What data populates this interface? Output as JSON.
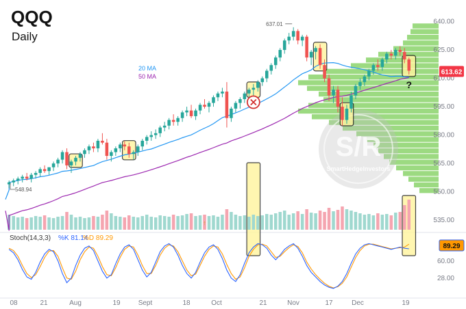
{
  "header": {
    "title": "QQQ",
    "subtitle": "Daily"
  },
  "chart_data": {
    "type": "candlestick",
    "price_axis": {
      "ticks": [
        "640.00",
        "625.00",
        "610.00",
        "595.00",
        "580.00",
        "565.00",
        "550.00",
        "535.00"
      ],
      "ylim": [
        530,
        642
      ]
    },
    "time_axis": {
      "ticks": [
        "08",
        "21",
        "Aug",
        "19",
        "Sept",
        "18",
        "Oct",
        "21",
        "Nov",
        "17",
        "Dec",
        "19"
      ]
    },
    "last_price": "613.62",
    "high_label": "637.01",
    "low_label": "548.94",
    "ma_labels": {
      "ma20": "20 MA",
      "ma50": "50 MA"
    },
    "annotation_mark": "?",
    "watermark": {
      "line1": "S/R",
      "line2": "SmartHedgeInvestors"
    },
    "candles": [
      [
        554,
        556,
        552,
        555
      ],
      [
        555,
        557,
        553,
        556
      ],
      [
        556,
        558,
        554,
        557
      ],
      [
        557,
        559,
        555,
        558
      ],
      [
        558,
        560,
        556,
        557
      ],
      [
        557,
        560,
        555,
        559
      ],
      [
        559,
        561,
        557,
        560
      ],
      [
        560,
        563,
        558,
        562
      ],
      [
        562,
        564,
        560,
        561
      ],
      [
        561,
        563,
        559,
        563
      ],
      [
        563,
        566,
        561,
        565
      ],
      [
        565,
        568,
        563,
        567
      ],
      [
        567,
        572,
        565,
        571
      ],
      [
        571,
        573,
        562,
        564
      ],
      [
        564,
        567,
        560,
        566
      ],
      [
        566,
        569,
        564,
        568
      ],
      [
        568,
        571,
        566,
        570
      ],
      [
        570,
        573,
        568,
        572
      ],
      [
        572,
        575,
        570,
        574
      ],
      [
        574,
        576,
        571,
        573
      ],
      [
        573,
        578,
        571,
        577
      ],
      [
        577,
        581,
        575,
        576
      ],
      [
        576,
        578,
        567,
        569
      ],
      [
        569,
        572,
        566,
        571
      ],
      [
        571,
        574,
        569,
        573
      ],
      [
        573,
        576,
        571,
        575
      ],
      [
        575,
        577,
        572,
        574
      ],
      [
        574,
        576,
        568,
        570
      ],
      [
        570,
        572,
        567,
        571
      ],
      [
        571,
        575,
        569,
        574
      ],
      [
        574,
        578,
        572,
        577
      ],
      [
        577,
        580,
        575,
        579
      ],
      [
        579,
        582,
        577,
        580
      ],
      [
        580,
        583,
        578,
        581
      ],
      [
        581,
        585,
        579,
        584
      ],
      [
        584,
        587,
        582,
        585
      ],
      [
        585,
        589,
        583,
        588
      ],
      [
        588,
        591,
        585,
        587
      ],
      [
        587,
        590,
        585,
        589
      ],
      [
        589,
        593,
        587,
        592
      ],
      [
        592,
        595,
        590,
        593
      ],
      [
        593,
        596,
        589,
        590
      ],
      [
        590,
        594,
        588,
        593
      ],
      [
        593,
        597,
        591,
        596
      ],
      [
        596,
        599,
        594,
        595
      ],
      [
        595,
        598,
        592,
        597
      ],
      [
        597,
        601,
        595,
        600
      ],
      [
        600,
        603,
        598,
        602
      ],
      [
        602,
        605,
        600,
        603
      ],
      [
        603,
        608,
        584,
        589
      ],
      [
        589,
        595,
        587,
        594
      ],
      [
        594,
        598,
        592,
        597
      ],
      [
        597,
        600,
        594,
        599
      ],
      [
        599,
        603,
        597,
        602
      ],
      [
        602,
        605,
        599,
        604
      ],
      [
        604,
        607,
        601,
        605
      ],
      [
        605,
        609,
        603,
        608
      ],
      [
        608,
        611,
        606,
        610
      ],
      [
        610,
        615,
        608,
        614
      ],
      [
        614,
        618,
        612,
        617
      ],
      [
        617,
        622,
        615,
        621
      ],
      [
        621,
        626,
        619,
        625
      ],
      [
        625,
        631,
        623,
        630
      ],
      [
        630,
        634,
        628,
        632
      ],
      [
        632,
        637,
        630,
        635
      ],
      [
        635,
        636,
        628,
        630
      ],
      [
        630,
        633,
        627,
        632
      ],
      [
        632,
        633,
        619,
        621
      ],
      [
        621,
        625,
        617,
        624
      ],
      [
        624,
        627,
        620,
        626
      ],
      [
        626,
        628,
        615,
        617
      ],
      [
        617,
        620,
        608,
        610
      ],
      [
        610,
        612,
        598,
        601
      ],
      [
        601,
        606,
        597,
        604
      ],
      [
        604,
        606,
        592,
        595
      ],
      [
        595,
        600,
        585,
        588
      ],
      [
        588,
        596,
        586,
        594
      ],
      [
        594,
        603,
        592,
        601
      ],
      [
        601,
        607,
        599,
        606
      ],
      [
        606,
        610,
        604,
        608
      ],
      [
        608,
        612,
        606,
        611
      ],
      [
        611,
        615,
        609,
        614
      ],
      [
        614,
        618,
        612,
        617
      ],
      [
        617,
        620,
        614,
        616
      ],
      [
        616,
        621,
        614,
        620
      ],
      [
        620,
        624,
        618,
        623
      ],
      [
        623,
        625,
        620,
        622
      ],
      [
        622,
        626,
        620,
        625
      ],
      [
        625,
        627,
        622,
        624
      ],
      [
        624,
        626,
        618,
        620
      ],
      [
        620,
        621,
        612,
        614
      ]
    ],
    "volume": [
      22,
      20,
      18,
      19,
      17,
      18,
      20,
      19,
      21,
      18,
      17,
      19,
      20,
      26,
      22,
      18,
      19,
      17,
      18,
      20,
      19,
      22,
      28,
      24,
      20,
      19,
      18,
      21,
      19,
      18,
      20,
      22,
      19,
      18,
      21,
      20,
      19,
      22,
      20,
      21,
      23,
      24,
      20,
      21,
      22,
      20,
      21,
      19,
      22,
      30,
      26,
      22,
      20,
      21,
      19,
      22,
      20,
      21,
      23,
      22,
      24,
      26,
      28,
      22,
      24,
      27,
      23,
      30,
      25,
      24,
      28,
      26,
      32,
      27,
      29,
      34,
      30,
      28,
      26,
      24,
      22,
      23,
      21,
      24,
      22,
      23,
      21,
      25,
      26,
      36,
      44
    ],
    "volume_marker": "↑",
    "stochastic": {
      "label": "Stoch(14,3,3)",
      "k_label": "%K 81.14",
      "d_label": "%D 89.29",
      "last_value": "89.29",
      "ticks": [
        "60.00",
        "28.00"
      ],
      "k": [
        80,
        74,
        62,
        45,
        32,
        28,
        40,
        58,
        72,
        80,
        76,
        60,
        38,
        22,
        30,
        52,
        70,
        82,
        86,
        78,
        60,
        42,
        30,
        36,
        55,
        72,
        84,
        88,
        80,
        62,
        44,
        32,
        40,
        58,
        76,
        86,
        90,
        84,
        70,
        52,
        38,
        30,
        40,
        58,
        74,
        84,
        88,
        80,
        64,
        44,
        30,
        24,
        36,
        56,
        74,
        84,
        90,
        88,
        82,
        70,
        62,
        70,
        80,
        86,
        90,
        82,
        68,
        52,
        40,
        32,
        24,
        18,
        14,
        12,
        16,
        24,
        38,
        56,
        72,
        82,
        88,
        90,
        88,
        86,
        84,
        82,
        80,
        82,
        84,
        82,
        81
      ],
      "d": [
        82,
        78,
        68,
        52,
        38,
        31,
        36,
        50,
        66,
        77,
        78,
        68,
        48,
        30,
        28,
        42,
        62,
        76,
        84,
        82,
        68,
        50,
        36,
        34,
        48,
        66,
        80,
        86,
        84,
        70,
        52,
        38,
        38,
        52,
        70,
        82,
        88,
        86,
        76,
        60,
        44,
        34,
        37,
        52,
        68,
        80,
        86,
        84,
        72,
        54,
        38,
        28,
        32,
        48,
        68,
        80,
        88,
        89,
        86,
        76,
        66,
        68,
        76,
        83,
        88,
        85,
        74,
        58,
        46,
        36,
        28,
        21,
        16,
        13,
        15,
        21,
        32,
        49,
        66,
        78,
        86,
        89,
        89,
        87,
        85,
        83,
        81,
        82,
        83,
        84,
        89
      ]
    },
    "volume_profile": [
      [
        639,
        38
      ],
      [
        636,
        41
      ],
      [
        633,
        46
      ],
      [
        630,
        52
      ],
      [
        627,
        66
      ],
      [
        624,
        88
      ],
      [
        621,
        106
      ],
      [
        618,
        128
      ],
      [
        615,
        165
      ],
      [
        612,
        190
      ],
      [
        609,
        205
      ],
      [
        606,
        192
      ],
      [
        603,
        175
      ],
      [
        600,
        168
      ],
      [
        597,
        190
      ],
      [
        594,
        205
      ],
      [
        591,
        185
      ],
      [
        588,
        160
      ],
      [
        585,
        140
      ],
      [
        582,
        120
      ],
      [
        579,
        105
      ],
      [
        576,
        95
      ],
      [
        573,
        88
      ],
      [
        570,
        80
      ],
      [
        567,
        72
      ],
      [
        564,
        62
      ],
      [
        561,
        52
      ],
      [
        558,
        44
      ],
      [
        555,
        36
      ],
      [
        552,
        28
      ]
    ],
    "highlight_boxes": [
      {
        "start": 15,
        "end": 15
      },
      {
        "start": 27,
        "end": 27
      },
      {
        "start": 55,
        "end": 55
      },
      {
        "start": 70,
        "end": 70
      },
      {
        "start": 76,
        "end": 76
      },
      {
        "start": 90,
        "end": 90
      }
    ],
    "cross_marker_index": 55,
    "colors": {
      "up": "#26a69a",
      "down": "#ef5350",
      "ma20": "#2196f3",
      "ma50": "#9c27b0",
      "profile": "#8bd36b",
      "highlight": "#fff59d",
      "price_tag": "#f23645",
      "stoch_k": "#2962ff",
      "stoch_d": "#ff9800"
    }
  }
}
